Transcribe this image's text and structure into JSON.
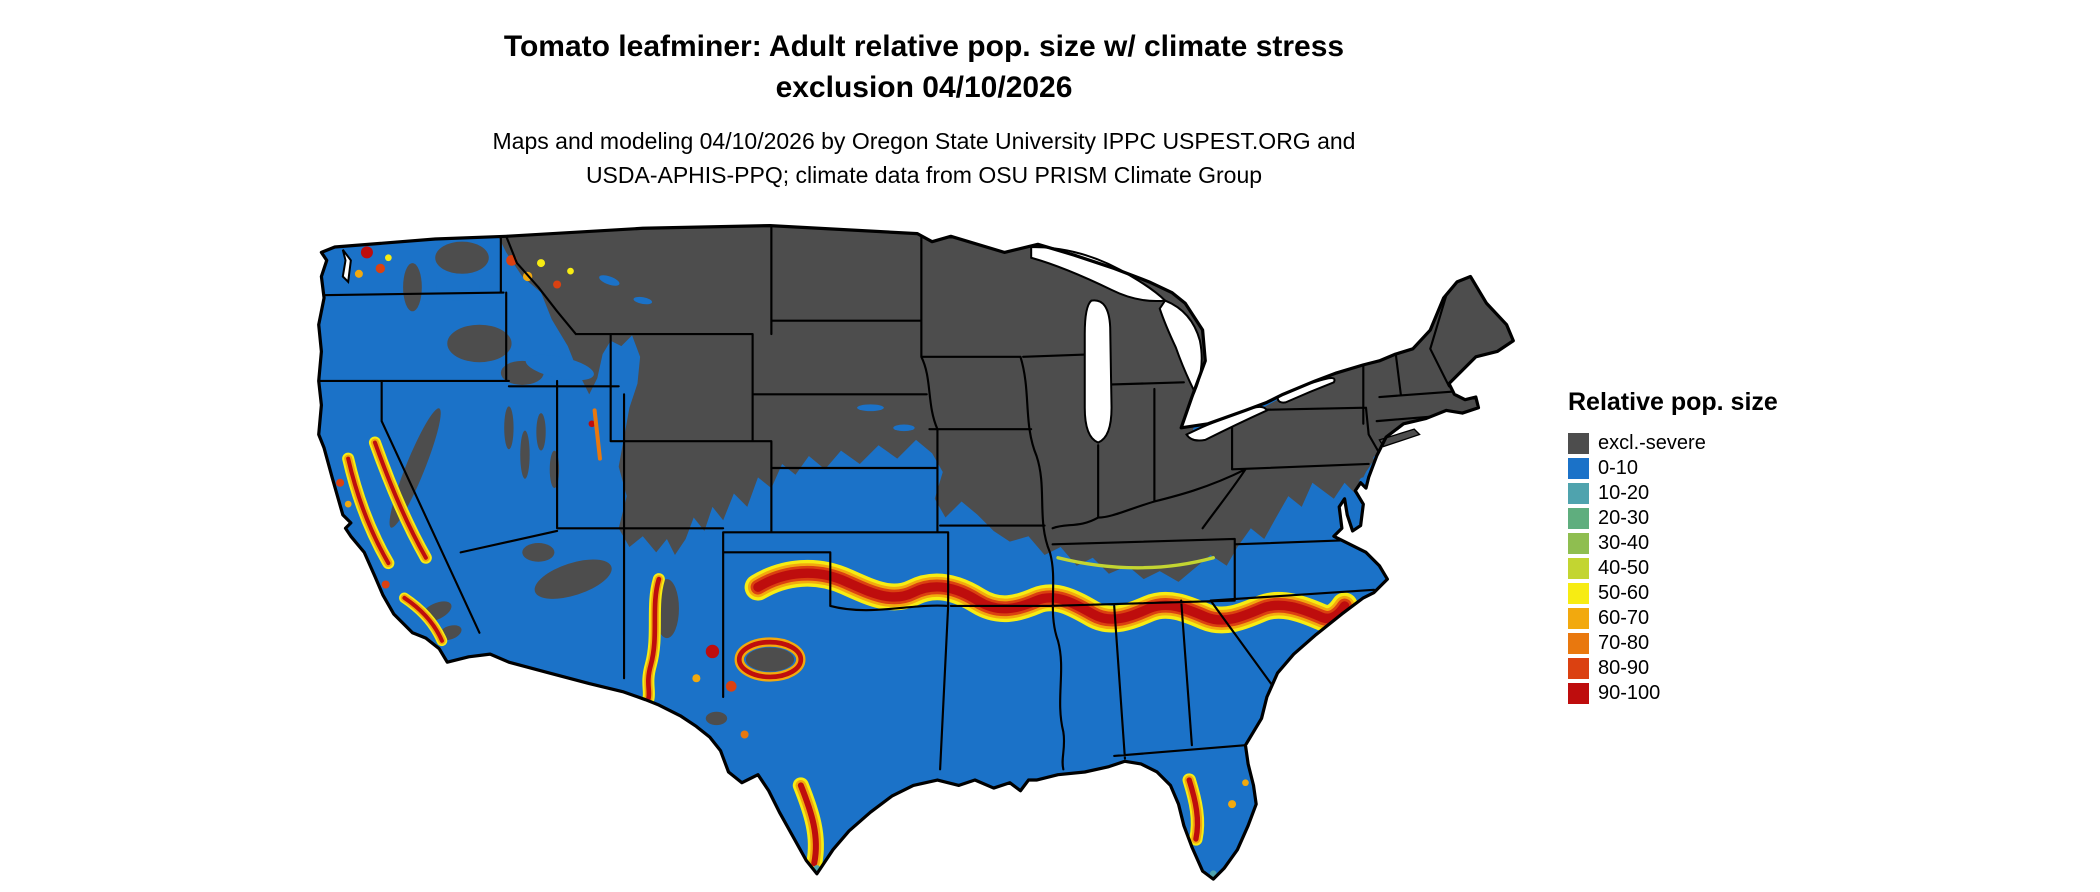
{
  "header": {
    "title_line1": "Tomato leafminer: Adult relative pop. size w/ climate stress",
    "title_line2": "exclusion 04/10/2026",
    "subtitle_line1": "Maps and modeling 04/10/2026 by Oregon State University IPPC USPEST.ORG and",
    "subtitle_line2": "USDA-APHIS-PPQ; climate data from OSU PRISM Climate Group"
  },
  "legend": {
    "title": "Relative pop. size",
    "items": [
      {
        "label": "excl.-severe",
        "color": "#4D4D4D"
      },
      {
        "label": "0-10",
        "color": "#1B72C8"
      },
      {
        "label": "10-20",
        "color": "#4FA3AE"
      },
      {
        "label": "20-30",
        "color": "#5FAE7E"
      },
      {
        "label": "30-40",
        "color": "#8FBE50"
      },
      {
        "label": "40-50",
        "color": "#C3D531"
      },
      {
        "label": "50-60",
        "color": "#F7EC13"
      },
      {
        "label": "60-70",
        "color": "#F2A90E"
      },
      {
        "label": "70-80",
        "color": "#E9780E"
      },
      {
        "label": "80-90",
        "color": "#DB4111"
      },
      {
        "label": "90-100",
        "color": "#BE0D0D"
      }
    ]
  },
  "map": {
    "water_color": "#ffffff",
    "boundary_color": "#000000"
  }
}
